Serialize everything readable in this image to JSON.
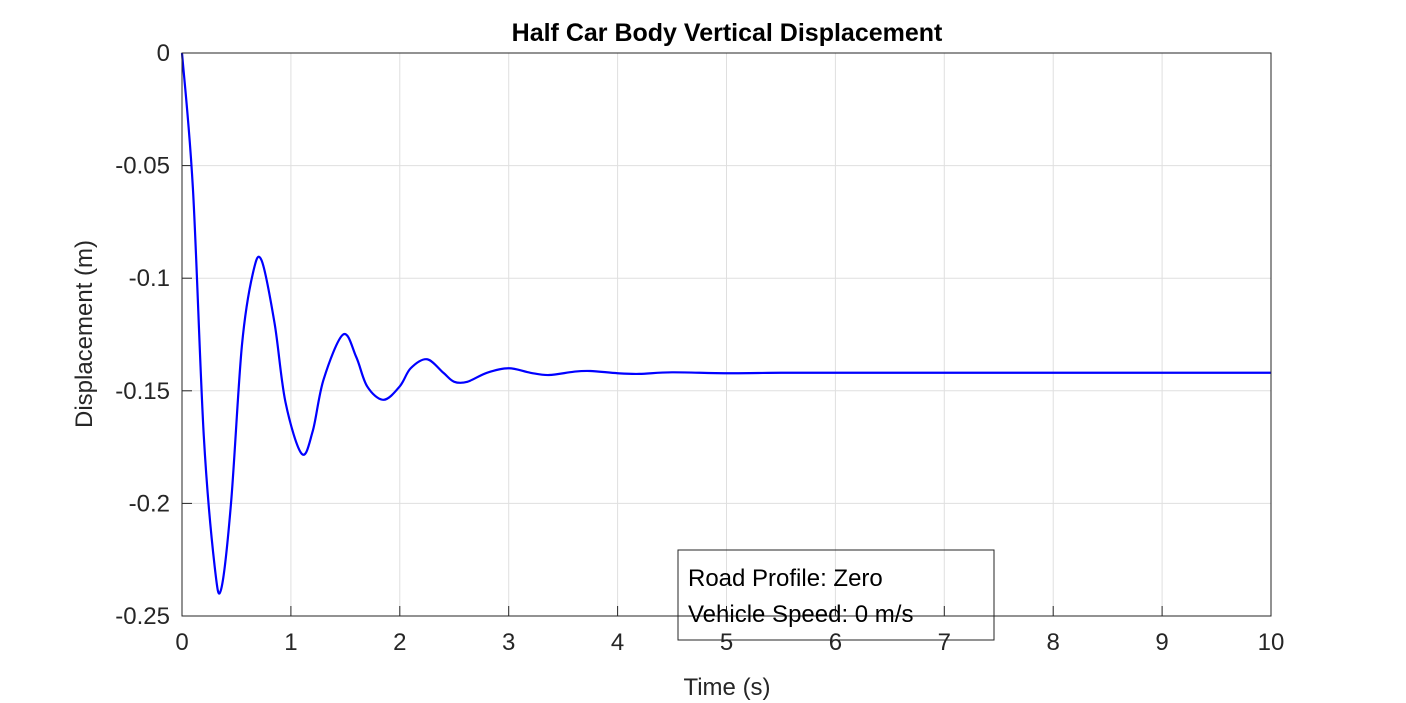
{
  "chart_data": {
    "type": "line",
    "title": "Half Car Body Vertical Displacement",
    "xlabel": "Time (s)",
    "ylabel": "Displacement (m)",
    "xlim": [
      0,
      10
    ],
    "ylim": [
      -0.25,
      0
    ],
    "x_ticks": [
      "0",
      "1",
      "2",
      "3",
      "4",
      "5",
      "6",
      "7",
      "8",
      "9",
      "10"
    ],
    "y_ticks": [
      "0",
      "-0.05",
      "-0.1",
      "-0.15",
      "-0.2",
      "-0.25"
    ],
    "grid": true,
    "series": [
      {
        "color": "#0000ff",
        "x": [
          0,
          0.1,
          0.2,
          0.3,
          0.36,
          0.45,
          0.55,
          0.65,
          0.73,
          0.85,
          0.95,
          1.1,
          1.2,
          1.3,
          1.48,
          1.6,
          1.7,
          1.85,
          2.0,
          2.1,
          2.25,
          2.4,
          2.5,
          2.62,
          2.8,
          3.0,
          3.2,
          3.37,
          3.6,
          3.75,
          4.0,
          4.2,
          4.5,
          5.0,
          5.5,
          6.0,
          7.0,
          8.0,
          9.0,
          10.0
        ],
        "y": [
          0,
          -0.06,
          -0.17,
          -0.228,
          -0.238,
          -0.2,
          -0.13,
          -0.098,
          -0.092,
          -0.12,
          -0.155,
          -0.178,
          -0.168,
          -0.145,
          -0.125,
          -0.135,
          -0.148,
          -0.154,
          -0.148,
          -0.14,
          -0.136,
          -0.142,
          -0.146,
          -0.146,
          -0.142,
          -0.14,
          -0.142,
          -0.143,
          -0.1415,
          -0.1412,
          -0.1422,
          -0.1425,
          -0.1418,
          -0.1422,
          -0.142,
          -0.142,
          -0.142,
          -0.142,
          -0.142,
          -0.142
        ]
      }
    ],
    "annotation": [
      "Road Profile: Zero",
      "Vehicle Speed: 0 m/s"
    ]
  }
}
